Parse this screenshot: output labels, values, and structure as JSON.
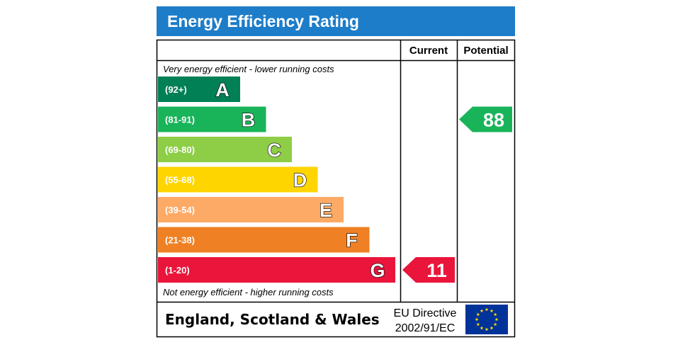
{
  "chart_data": {
    "type": "bar",
    "title": "Energy Efficiency Rating",
    "column_headers": [
      "Current",
      "Potential"
    ],
    "top_note": "Very energy efficient - lower running costs",
    "bottom_note": "Not energy efficient - higher running costs",
    "bands": [
      {
        "letter": "A",
        "range": "(92+)",
        "color": "#008054"
      },
      {
        "letter": "B",
        "range": "(81-91)",
        "color": "#19b459"
      },
      {
        "letter": "C",
        "range": "(69-80)",
        "color": "#8dce46"
      },
      {
        "letter": "D",
        "range": "(55-68)",
        "color": "#ffd500"
      },
      {
        "letter": "E",
        "range": "(39-54)",
        "color": "#fcaa65"
      },
      {
        "letter": "F",
        "range": "(21-38)",
        "color": "#ef8023"
      },
      {
        "letter": "G",
        "range": "(1-20)",
        "color": "#e9153b"
      }
    ],
    "current": {
      "value": 11,
      "band": "G"
    },
    "potential": {
      "value": 88,
      "band": "B"
    },
    "footer_region": "England, Scotland & Wales",
    "footer_directive_line1": "EU Directive",
    "footer_directive_line2": "2002/91/EC",
    "title_bar_color": "#1d7dc9",
    "eu_flag_color": "#003399",
    "eu_star_color": "#ffdd00"
  }
}
